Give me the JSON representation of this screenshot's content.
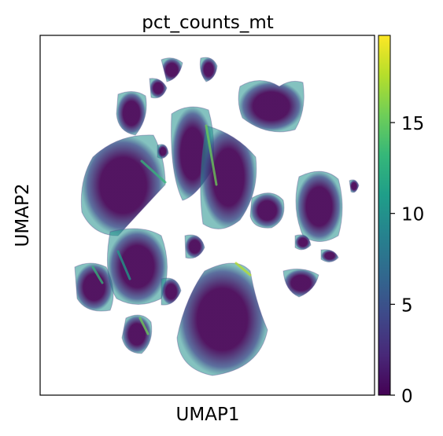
{
  "chart_data": {
    "type": "scatter",
    "title": "pct_counts_mt",
    "xlabel": "UMAP1",
    "ylabel": "UMAP2",
    "x_ticks": "none",
    "y_ticks": "none",
    "grid": false,
    "colormap": "viridis",
    "colorbar": {
      "min": 0,
      "max": 19.8,
      "ticks": [
        0,
        5,
        10,
        15
      ],
      "tick_labels": [
        "0",
        "5",
        "10",
        "15"
      ],
      "stops": [
        "#440154",
        "#482878",
        "#3e4989",
        "#31688e",
        "#26828e",
        "#1f9e89",
        "#35b779",
        "#6ece58",
        "#b5de2b",
        "#fde725"
      ]
    }
  }
}
